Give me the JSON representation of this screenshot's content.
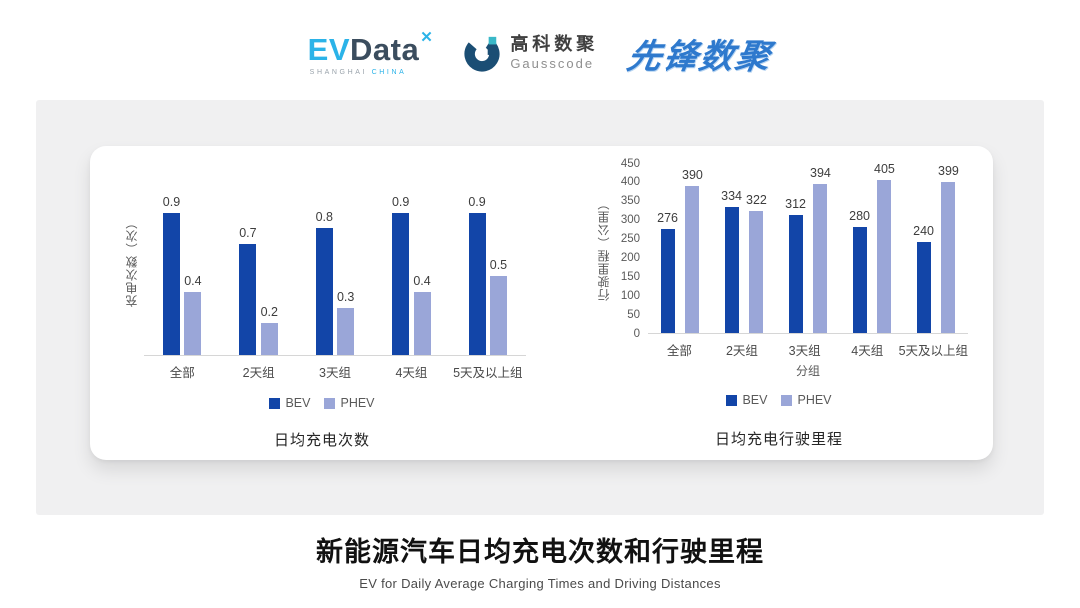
{
  "header": {
    "evdata": {
      "ev": "EV",
      "data": "Data",
      "sub_shanghai": "SHANGHAI",
      "sub_china": "CHINA"
    },
    "gausscode": {
      "cn": "高科数聚",
      "en": "Gausscode"
    },
    "xianfeng": "先锋数聚"
  },
  "footer": {
    "title": "新能源汽车日均充电次数和行驶里程",
    "subtitle": "EV for Daily Average Charging Times and Driving Distances"
  },
  "colors": {
    "bev": "#1245A8",
    "phev": "#9AA6D8",
    "evdata_blue": "#2BB3E8",
    "evdata_dark": "#3B4D5E",
    "gausscode_navy": "#1B4E74",
    "gausscode_teal": "#39B8C8",
    "xianfeng_blue": "#2E79CD",
    "panel_gray": "#F0F0F1",
    "axis_line": "#D6D6D6"
  },
  "chart_data": [
    {
      "id": "daily-charging-times",
      "type": "bar",
      "title": "日均充电次数",
      "ylabel": "充电次数（次）",
      "xlabel": "",
      "categories": [
        "全部",
        "2天组",
        "3天组",
        "4天组",
        "5天及以上组"
      ],
      "series": [
        {
          "name": "BEV",
          "color": "#1245A8",
          "values": [
            0.9,
            0.7,
            0.8,
            0.9,
            0.9
          ]
        },
        {
          "name": "PHEV",
          "color": "#9AA6D8",
          "values": [
            0.4,
            0.2,
            0.3,
            0.4,
            0.5
          ]
        }
      ],
      "ylim": [
        0,
        1.2
      ],
      "yticks": [],
      "grid": false,
      "legend_position": "bottom"
    },
    {
      "id": "daily-driving-distance",
      "type": "bar",
      "title": "日均充电行驶里程",
      "ylabel": "行驶里程（公里）",
      "xlabel": "分组",
      "categories": [
        "全部",
        "2天组",
        "3天组",
        "4天组",
        "5天及以上组"
      ],
      "series": [
        {
          "name": "BEV",
          "color": "#1245A8",
          "values": [
            276,
            334,
            312,
            280,
            240
          ]
        },
        {
          "name": "PHEV",
          "color": "#9AA6D8",
          "values": [
            390,
            322,
            394,
            405,
            399
          ]
        }
      ],
      "ylim": [
        0,
        450
      ],
      "yticks": [
        0,
        50,
        100,
        150,
        200,
        250,
        300,
        350,
        400,
        450
      ],
      "grid": false,
      "legend_position": "bottom"
    }
  ]
}
